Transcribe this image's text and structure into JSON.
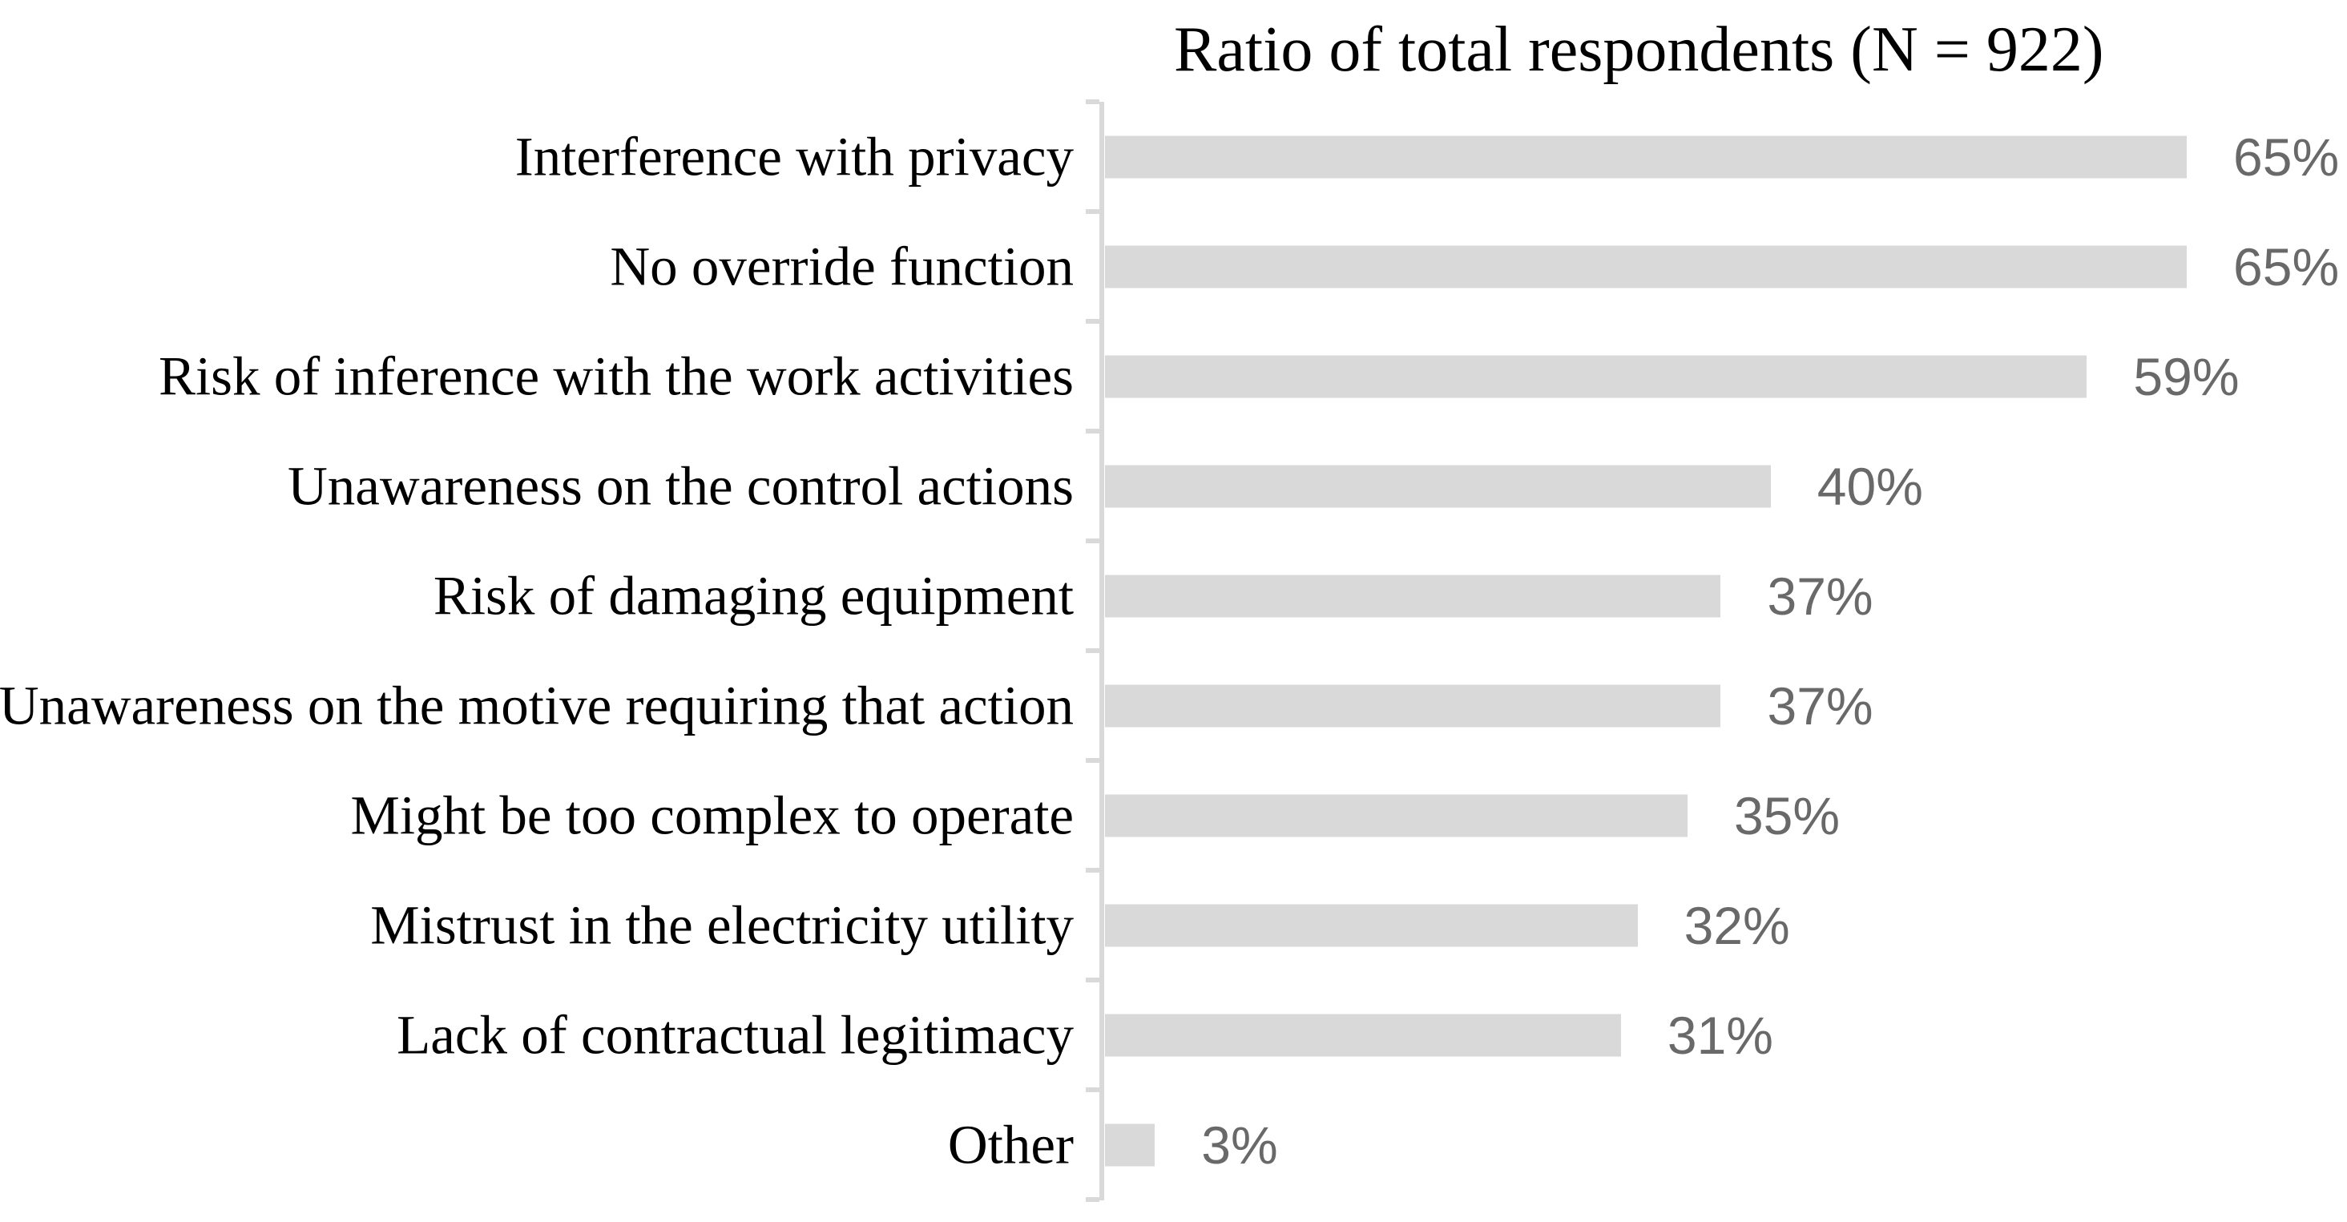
{
  "title": "Ratio of total respondents (N = 922)",
  "chart_data": {
    "type": "bar",
    "orientation": "horizontal",
    "title": "Ratio of total respondents (N = 922)",
    "n_total": 922,
    "categories": [
      "Interference with privacy",
      "No override function",
      "Risk of inference with the work activities",
      "Unawareness on the control actions",
      "Risk of damaging equipment",
      "Unawareness on the motive requiring that action",
      "Might be too complex to operate",
      "Mistrust in the electricity utility",
      "Lack of contractual legitimacy",
      "Other"
    ],
    "values": [
      65,
      65,
      59,
      40,
      37,
      37,
      35,
      32,
      31,
      3
    ],
    "value_labels": [
      "65%",
      "65%",
      "59%",
      "40%",
      "37%",
      "37%",
      "35%",
      "32%",
      "31%",
      "3%"
    ],
    "unit": "%",
    "xlim": [
      0,
      75
    ],
    "grid": false,
    "legend": false,
    "bar_color": "#d9d9d9",
    "axis_color": "#d9d9d9",
    "value_label_color": "#696969",
    "category_label_color": "#000000",
    "background_color": "#ffffff"
  }
}
